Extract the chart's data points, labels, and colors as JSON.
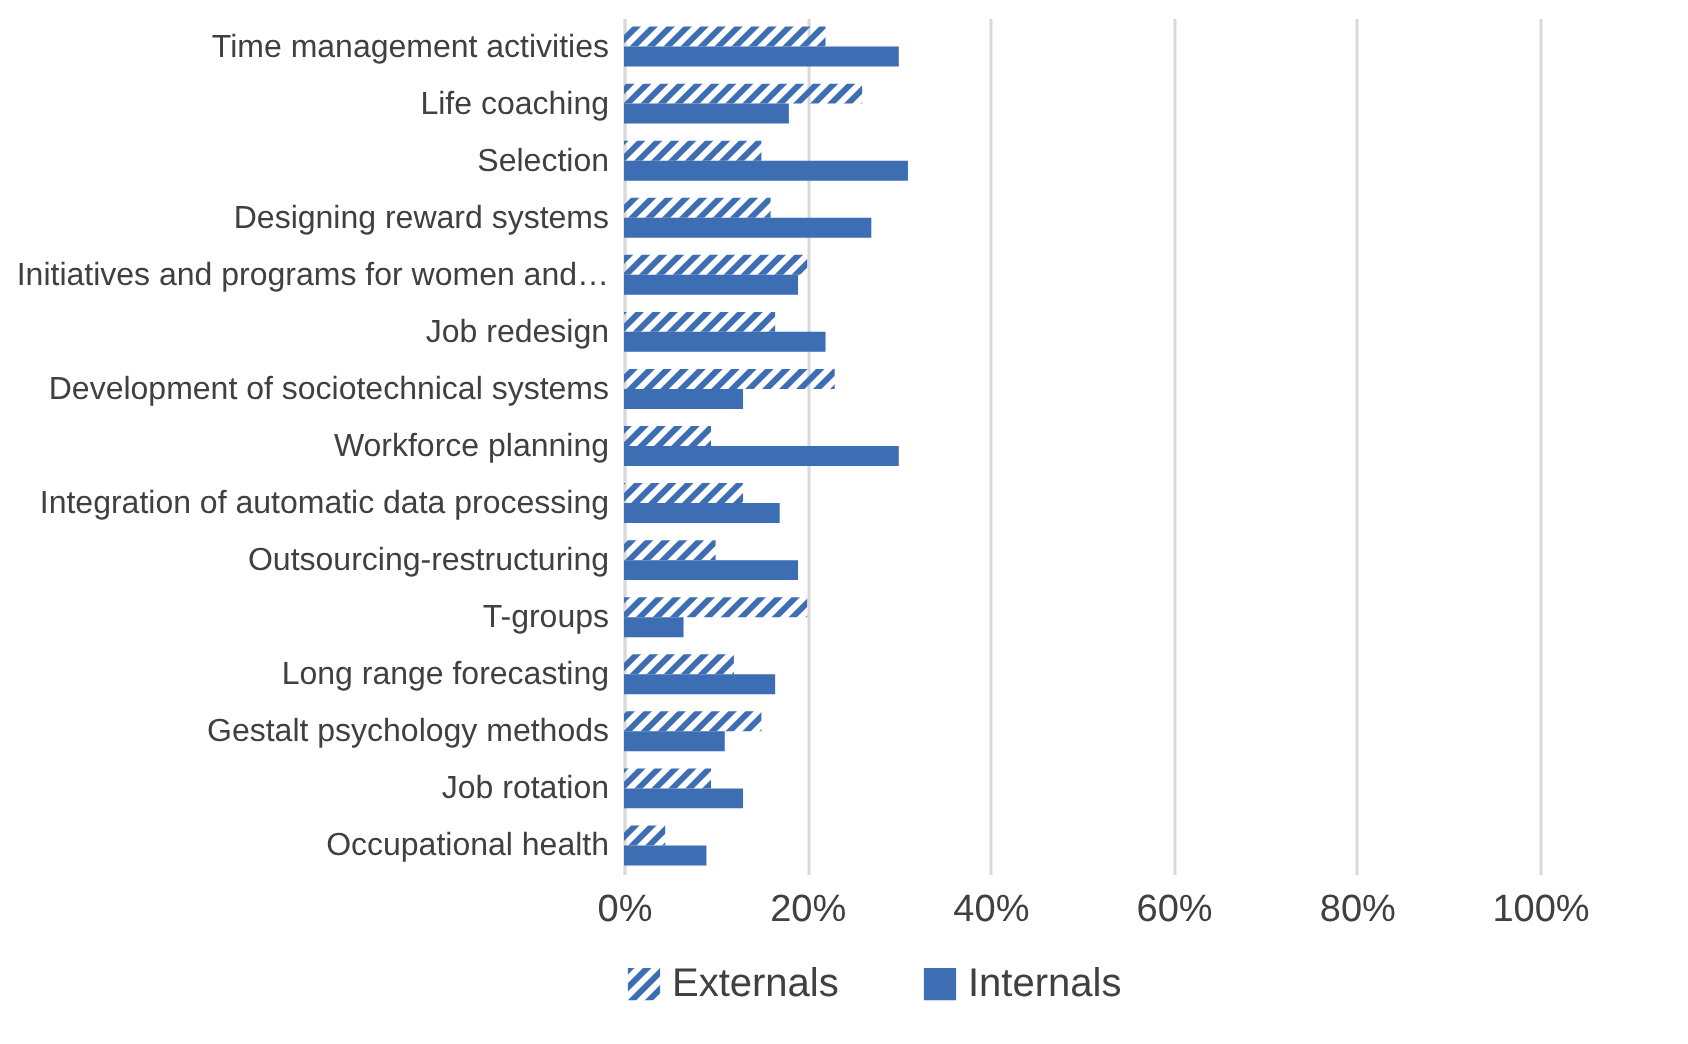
{
  "chart_data": {
    "type": "bar",
    "orientation": "horizontal",
    "categories": [
      "Time management activities",
      "Life coaching",
      "Selection",
      "Designing reward systems",
      "Initiatives and programs for women and…",
      "Job redesign",
      "Development of sociotechnical systems",
      "Workforce planning",
      "Integration of automatic data processing",
      "Outsourcing-restructuring",
      "T-groups",
      "Long range forecasting",
      "Gestalt psychology methods",
      "Job rotation",
      "Occupational health"
    ],
    "series": [
      {
        "name": "Externals",
        "color": "#3d6eb4",
        "values": [
          22,
          26,
          15,
          16,
          20,
          16.5,
          23,
          9.5,
          13,
          10,
          20,
          12,
          15,
          9.5,
          4.5
        ]
      },
      {
        "name": "Internals",
        "color": "#3d6eb4",
        "values": [
          30,
          18,
          31,
          27,
          19,
          22,
          13,
          30,
          17,
          19,
          6.5,
          16.5,
          11,
          13,
          9
        ]
      }
    ],
    "xlim": [
      0,
      100
    ],
    "xticks": [
      {
        "value": 0,
        "label": "0%"
      },
      {
        "value": 20,
        "label": "20%"
      },
      {
        "value": 40,
        "label": "40%"
      },
      {
        "value": 60,
        "label": "60%"
      },
      {
        "value": 80,
        "label": "80%"
      },
      {
        "value": 100,
        "label": "100%"
      }
    ],
    "grid": "x",
    "legend": "bottom"
  }
}
